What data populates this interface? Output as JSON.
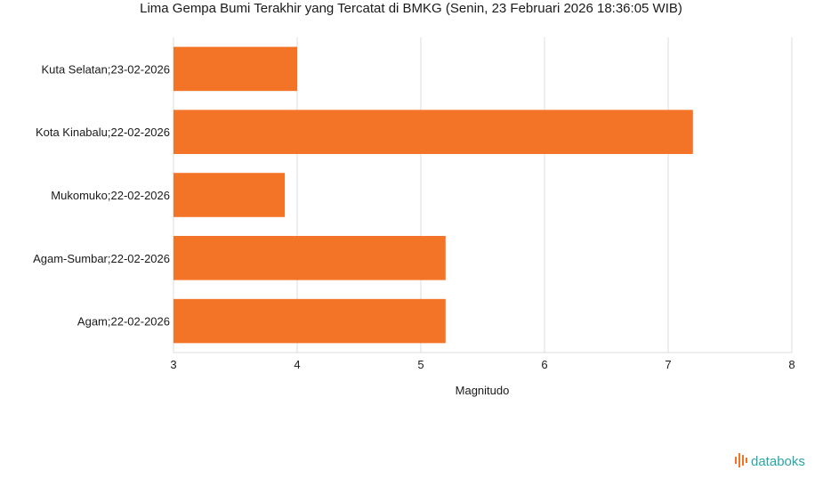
{
  "chart_data": {
    "type": "bar",
    "orientation": "horizontal",
    "title": "Lima Gempa Bumi Terakhir yang Tercatat di BMKG (Senin, 23 Februari 2026 18:36:05 WIB)",
    "xlabel": "Magnitudo",
    "ylabel": "",
    "categories": [
      "Kuta Selatan;23-02-2026",
      "Kota Kinabalu;22-02-2026",
      "Mukomuko;22-02-2026",
      "Agam-Sumbar;22-02-2026",
      "Agam;22-02-2026"
    ],
    "values": [
      4.0,
      7.2,
      3.9,
      5.2,
      5.2
    ],
    "xlim": [
      3,
      8
    ],
    "xticks": [
      "3",
      "4",
      "5",
      "6",
      "7",
      "8"
    ],
    "grid": true,
    "legend": "none",
    "bar_color": "#f37327"
  },
  "brand": {
    "name": "databoks",
    "icon": "databoks-logo-icon",
    "color": "#2aa5a5",
    "accent": "#f37327"
  }
}
